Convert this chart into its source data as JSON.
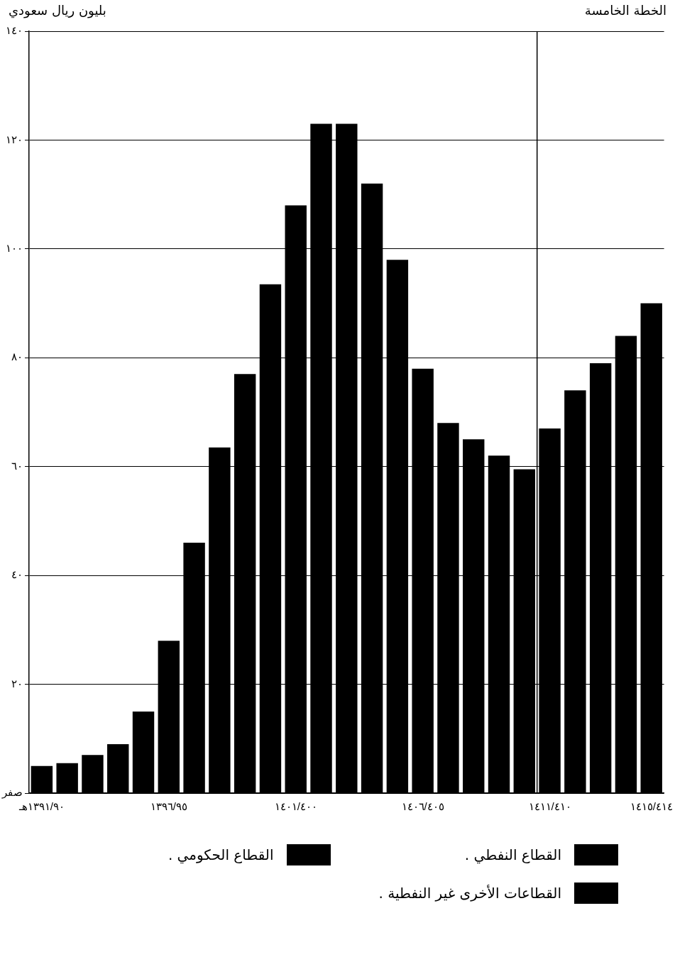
{
  "chart_data": {
    "type": "bar",
    "title": "الخطة الخامسة",
    "ylabel": "بليون ريال سعودي",
    "categories": [
      "١٣٩١/٩٠هـ",
      null,
      null,
      null,
      null,
      "١٣٩٦/٩٥",
      null,
      null,
      null,
      null,
      "١٤٠١/٤٠٠",
      null,
      null,
      null,
      null,
      "١٤٠٦/٤٠٥",
      null,
      null,
      null,
      null,
      "١٤١١/٤١٠",
      null,
      null,
      null,
      "١٤١٥/٤١٤"
    ],
    "values": [
      5,
      5.5,
      7,
      9,
      15,
      28,
      46,
      63.5,
      77,
      93.5,
      108,
      123,
      123,
      112,
      98,
      78,
      68,
      65,
      62,
      59.5,
      67,
      74,
      79,
      84,
      90
    ],
    "color": "#000000",
    "ylim": [
      0,
      140
    ],
    "yticks": [
      {
        "value": 0,
        "label": "صفر"
      },
      {
        "value": 20,
        "label": "٢٠"
      },
      {
        "value": 40,
        "label": "٤٠"
      },
      {
        "value": 60,
        "label": "٦٠"
      },
      {
        "value": 80,
        "label": "٨٠"
      },
      {
        "value": 100,
        "label": "١٠٠"
      },
      {
        "value": 120,
        "label": "١٢٠"
      },
      {
        "value": 140,
        "label": "١٤٠"
      }
    ],
    "grid": "y",
    "ref_lines": [
      {
        "axis": "x",
        "value": "١٤١١/٤١٠",
        "color": "#000000"
      }
    ],
    "annotations": [
      "القطاع النفطي .",
      "القطاع الحكومي .",
      "القطاعات الأخرى غير النفطية ."
    ]
  }
}
